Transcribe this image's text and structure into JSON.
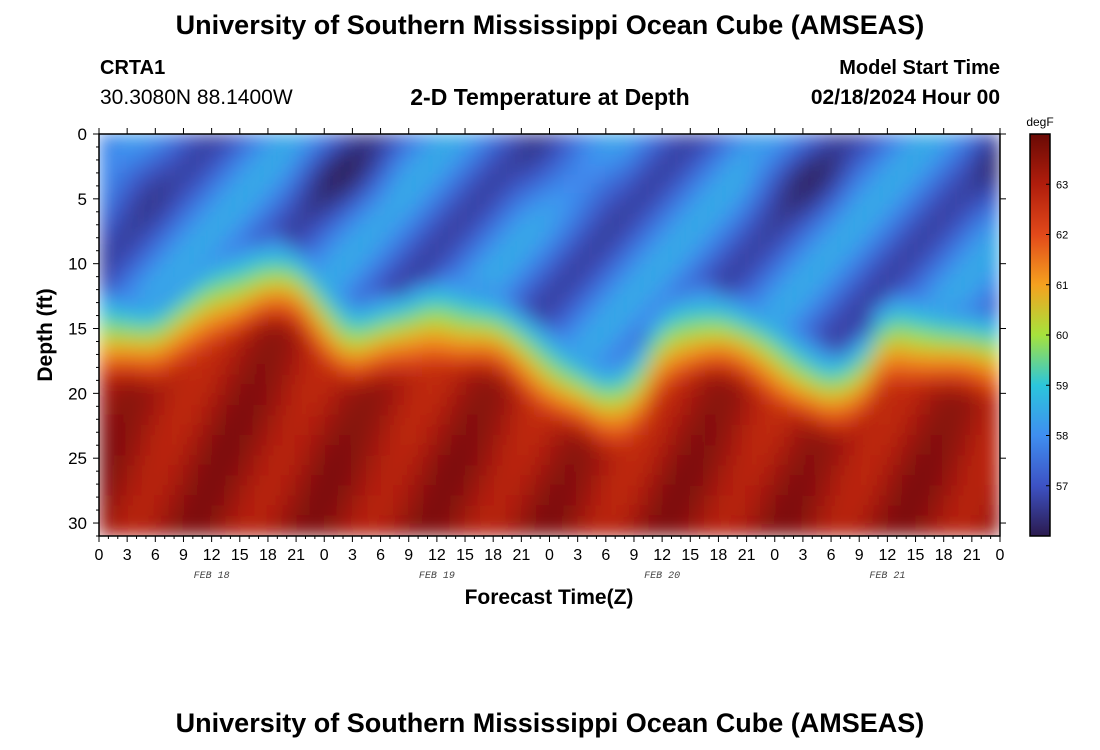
{
  "header": {
    "title": "University of Southern Mississippi Ocean Cube (AMSEAS)",
    "station": "CRTA1",
    "coords": "30.3080N  88.1400W",
    "plot_title": "2-D Temperature at Depth",
    "model_start_label": "Model Start Time",
    "model_start_value": "02/18/2024 Hour 00"
  },
  "footer": {
    "title": "University of Southern Mississippi Ocean Cube (AMSEAS)"
  },
  "chart_data": {
    "type": "heatmap",
    "title": "2-D Temperature at Depth",
    "xlabel": "Forecast Time(Z)",
    "ylabel": "Depth (ft)",
    "x_tick_labels": [
      "0",
      "3",
      "6",
      "9",
      "12",
      "15",
      "18",
      "21",
      "0",
      "3",
      "6",
      "9",
      "12",
      "15",
      "18",
      "21",
      "0",
      "3",
      "6",
      "9",
      "12",
      "15",
      "18",
      "21",
      "0",
      "3",
      "6",
      "9",
      "12",
      "15",
      "18",
      "21",
      "0"
    ],
    "x_range_hours": [
      0,
      96
    ],
    "date_labels": [
      {
        "label": "FEB 18",
        "hour": 12
      },
      {
        "label": "FEB 19",
        "hour": 36
      },
      {
        "label": "FEB 20",
        "hour": 60
      },
      {
        "label": "FEB 21",
        "hour": 84
      }
    ],
    "y_ticks": [
      0,
      5,
      10,
      15,
      20,
      25,
      30
    ],
    "y_range_ft": [
      0,
      31
    ],
    "colorbar": {
      "unit": "degF",
      "ticks": [
        57,
        58,
        59,
        60,
        61,
        62,
        63
      ],
      "range": [
        56,
        64
      ]
    },
    "colors": [
      "#2b1a4e",
      "#3d52c4",
      "#3f8ef0",
      "#2bc6dc",
      "#a6e33c",
      "#f5a11f",
      "#e2491a",
      "#b01d0c",
      "#6a0a05"
    ],
    "thermocline_depth_ft_by_hour": {
      "hours": [
        0,
        6,
        12,
        18,
        21,
        27,
        33,
        36,
        42,
        48,
        54,
        57,
        60,
        63,
        66,
        72,
        78,
        81,
        84,
        87,
        90,
        96
      ],
      "depths": [
        16,
        17,
        13.5,
        12,
        12.5,
        17,
        16,
        15,
        16,
        19,
        22,
        21,
        17,
        16,
        16,
        18,
        21,
        20,
        16.5,
        16.5,
        17,
        18
      ]
    }
  }
}
